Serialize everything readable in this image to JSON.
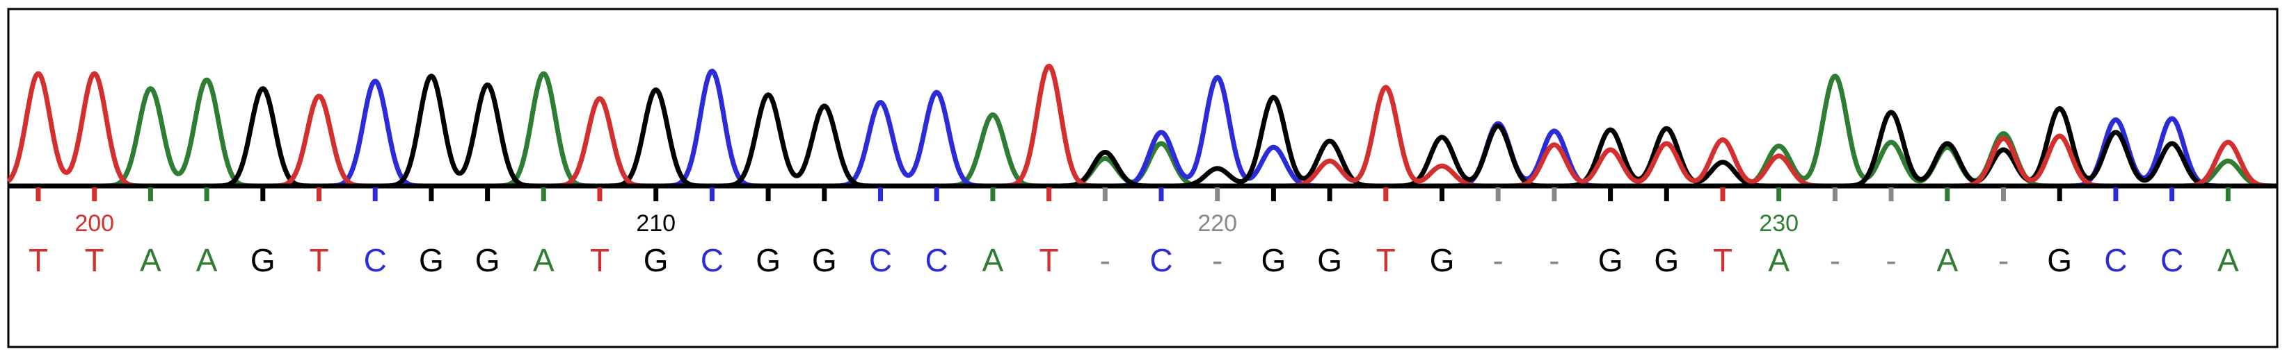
{
  "chart_data": {
    "type": "chromatogram",
    "colors": {
      "A": "#2e7d32",
      "C": "#2b2bd8",
      "G": "#000000",
      "T": "#d32f2f",
      "-": "#888888"
    },
    "position_labels": [
      {
        "text": "200",
        "base_index": 1,
        "color": "#d32f2f"
      },
      {
        "text": "210",
        "base_index": 11,
        "color": "#000000"
      },
      {
        "text": "220",
        "base_index": 21,
        "color": "#888888"
      },
      {
        "text": "230",
        "base_index": 31,
        "color": "#2e7d32"
      }
    ],
    "bases": [
      "T",
      "T",
      "A",
      "A",
      "G",
      "T",
      "C",
      "G",
      "G",
      "A",
      "T",
      "G",
      "C",
      "G",
      "G",
      "C",
      "C",
      "A",
      "T",
      "-",
      "C",
      "-",
      "G",
      "G",
      "T",
      "G",
      "-",
      "-",
      "G",
      "G",
      "T",
      "A",
      "-",
      "-",
      "A",
      "-",
      "G",
      "C",
      "C",
      "A"
    ],
    "peaks": [
      [
        {
          "c": "T",
          "h": 0.9
        }
      ],
      [
        {
          "c": "T",
          "h": 0.9
        }
      ],
      [
        {
          "c": "A",
          "h": 0.78
        }
      ],
      [
        {
          "c": "A",
          "h": 0.85
        }
      ],
      [
        {
          "c": "G",
          "h": 0.78
        }
      ],
      [
        {
          "c": "T",
          "h": 0.72
        }
      ],
      [
        {
          "c": "C",
          "h": 0.84
        }
      ],
      [
        {
          "c": "G",
          "h": 0.88
        }
      ],
      [
        {
          "c": "G",
          "h": 0.81
        }
      ],
      [
        {
          "c": "A",
          "h": 0.9
        }
      ],
      [
        {
          "c": "T",
          "h": 0.7
        }
      ],
      [
        {
          "c": "G",
          "h": 0.77
        }
      ],
      [
        {
          "c": "C",
          "h": 0.92
        }
      ],
      [
        {
          "c": "G",
          "h": 0.73
        }
      ],
      [
        {
          "c": "G",
          "h": 0.64
        }
      ],
      [
        {
          "c": "C",
          "h": 0.67
        }
      ],
      [
        {
          "c": "C",
          "h": 0.75
        }
      ],
      [
        {
          "c": "A",
          "h": 0.57
        }
      ],
      [
        {
          "c": "T",
          "h": 0.96
        }
      ],
      [
        {
          "c": "G",
          "h": 0.27
        },
        {
          "c": "A",
          "h": 0.22
        }
      ],
      [
        {
          "c": "C",
          "h": 0.43
        },
        {
          "c": "A",
          "h": 0.34
        }
      ],
      [
        {
          "c": "C",
          "h": 0.87
        },
        {
          "c": "G",
          "h": 0.14
        }
      ],
      [
        {
          "c": "G",
          "h": 0.71
        },
        {
          "c": "C",
          "h": 0.31
        }
      ],
      [
        {
          "c": "G",
          "h": 0.36
        },
        {
          "c": "T",
          "h": 0.2
        }
      ],
      [
        {
          "c": "T",
          "h": 0.79
        }
      ],
      [
        {
          "c": "G",
          "h": 0.39
        },
        {
          "c": "T",
          "h": 0.16
        }
      ],
      [
        {
          "c": "G",
          "h": 0.48
        },
        {
          "c": "C",
          "h": 0.5
        }
      ],
      [
        {
          "c": "C",
          "h": 0.44
        },
        {
          "c": "T",
          "h": 0.33
        }
      ],
      [
        {
          "c": "G",
          "h": 0.45
        },
        {
          "c": "T",
          "h": 0.29
        }
      ],
      [
        {
          "c": "G",
          "h": 0.46
        },
        {
          "c": "T",
          "h": 0.34
        }
      ],
      [
        {
          "c": "T",
          "h": 0.37
        },
        {
          "c": "G",
          "h": 0.19
        }
      ],
      [
        {
          "c": "A",
          "h": 0.32
        },
        {
          "c": "T",
          "h": 0.24
        }
      ],
      [
        {
          "c": "A",
          "h": 0.88
        }
      ],
      [
        {
          "c": "G",
          "h": 0.59
        },
        {
          "c": "A",
          "h": 0.35
        }
      ],
      [
        {
          "c": "G",
          "h": 0.34
        },
        {
          "c": "A",
          "h": 0.31
        }
      ],
      [
        {
          "c": "T",
          "h": 0.38
        },
        {
          "c": "A",
          "h": 0.42
        },
        {
          "c": "G",
          "h": 0.29
        }
      ],
      [
        {
          "c": "G",
          "h": 0.62
        },
        {
          "c": "T",
          "h": 0.4
        }
      ],
      [
        {
          "c": "C",
          "h": 0.53
        },
        {
          "c": "G",
          "h": 0.43
        }
      ],
      [
        {
          "c": "C",
          "h": 0.54
        },
        {
          "c": "G",
          "h": 0.34
        }
      ],
      [
        {
          "c": "T",
          "h": 0.35
        },
        {
          "c": "A",
          "h": 0.2
        }
      ]
    ]
  }
}
